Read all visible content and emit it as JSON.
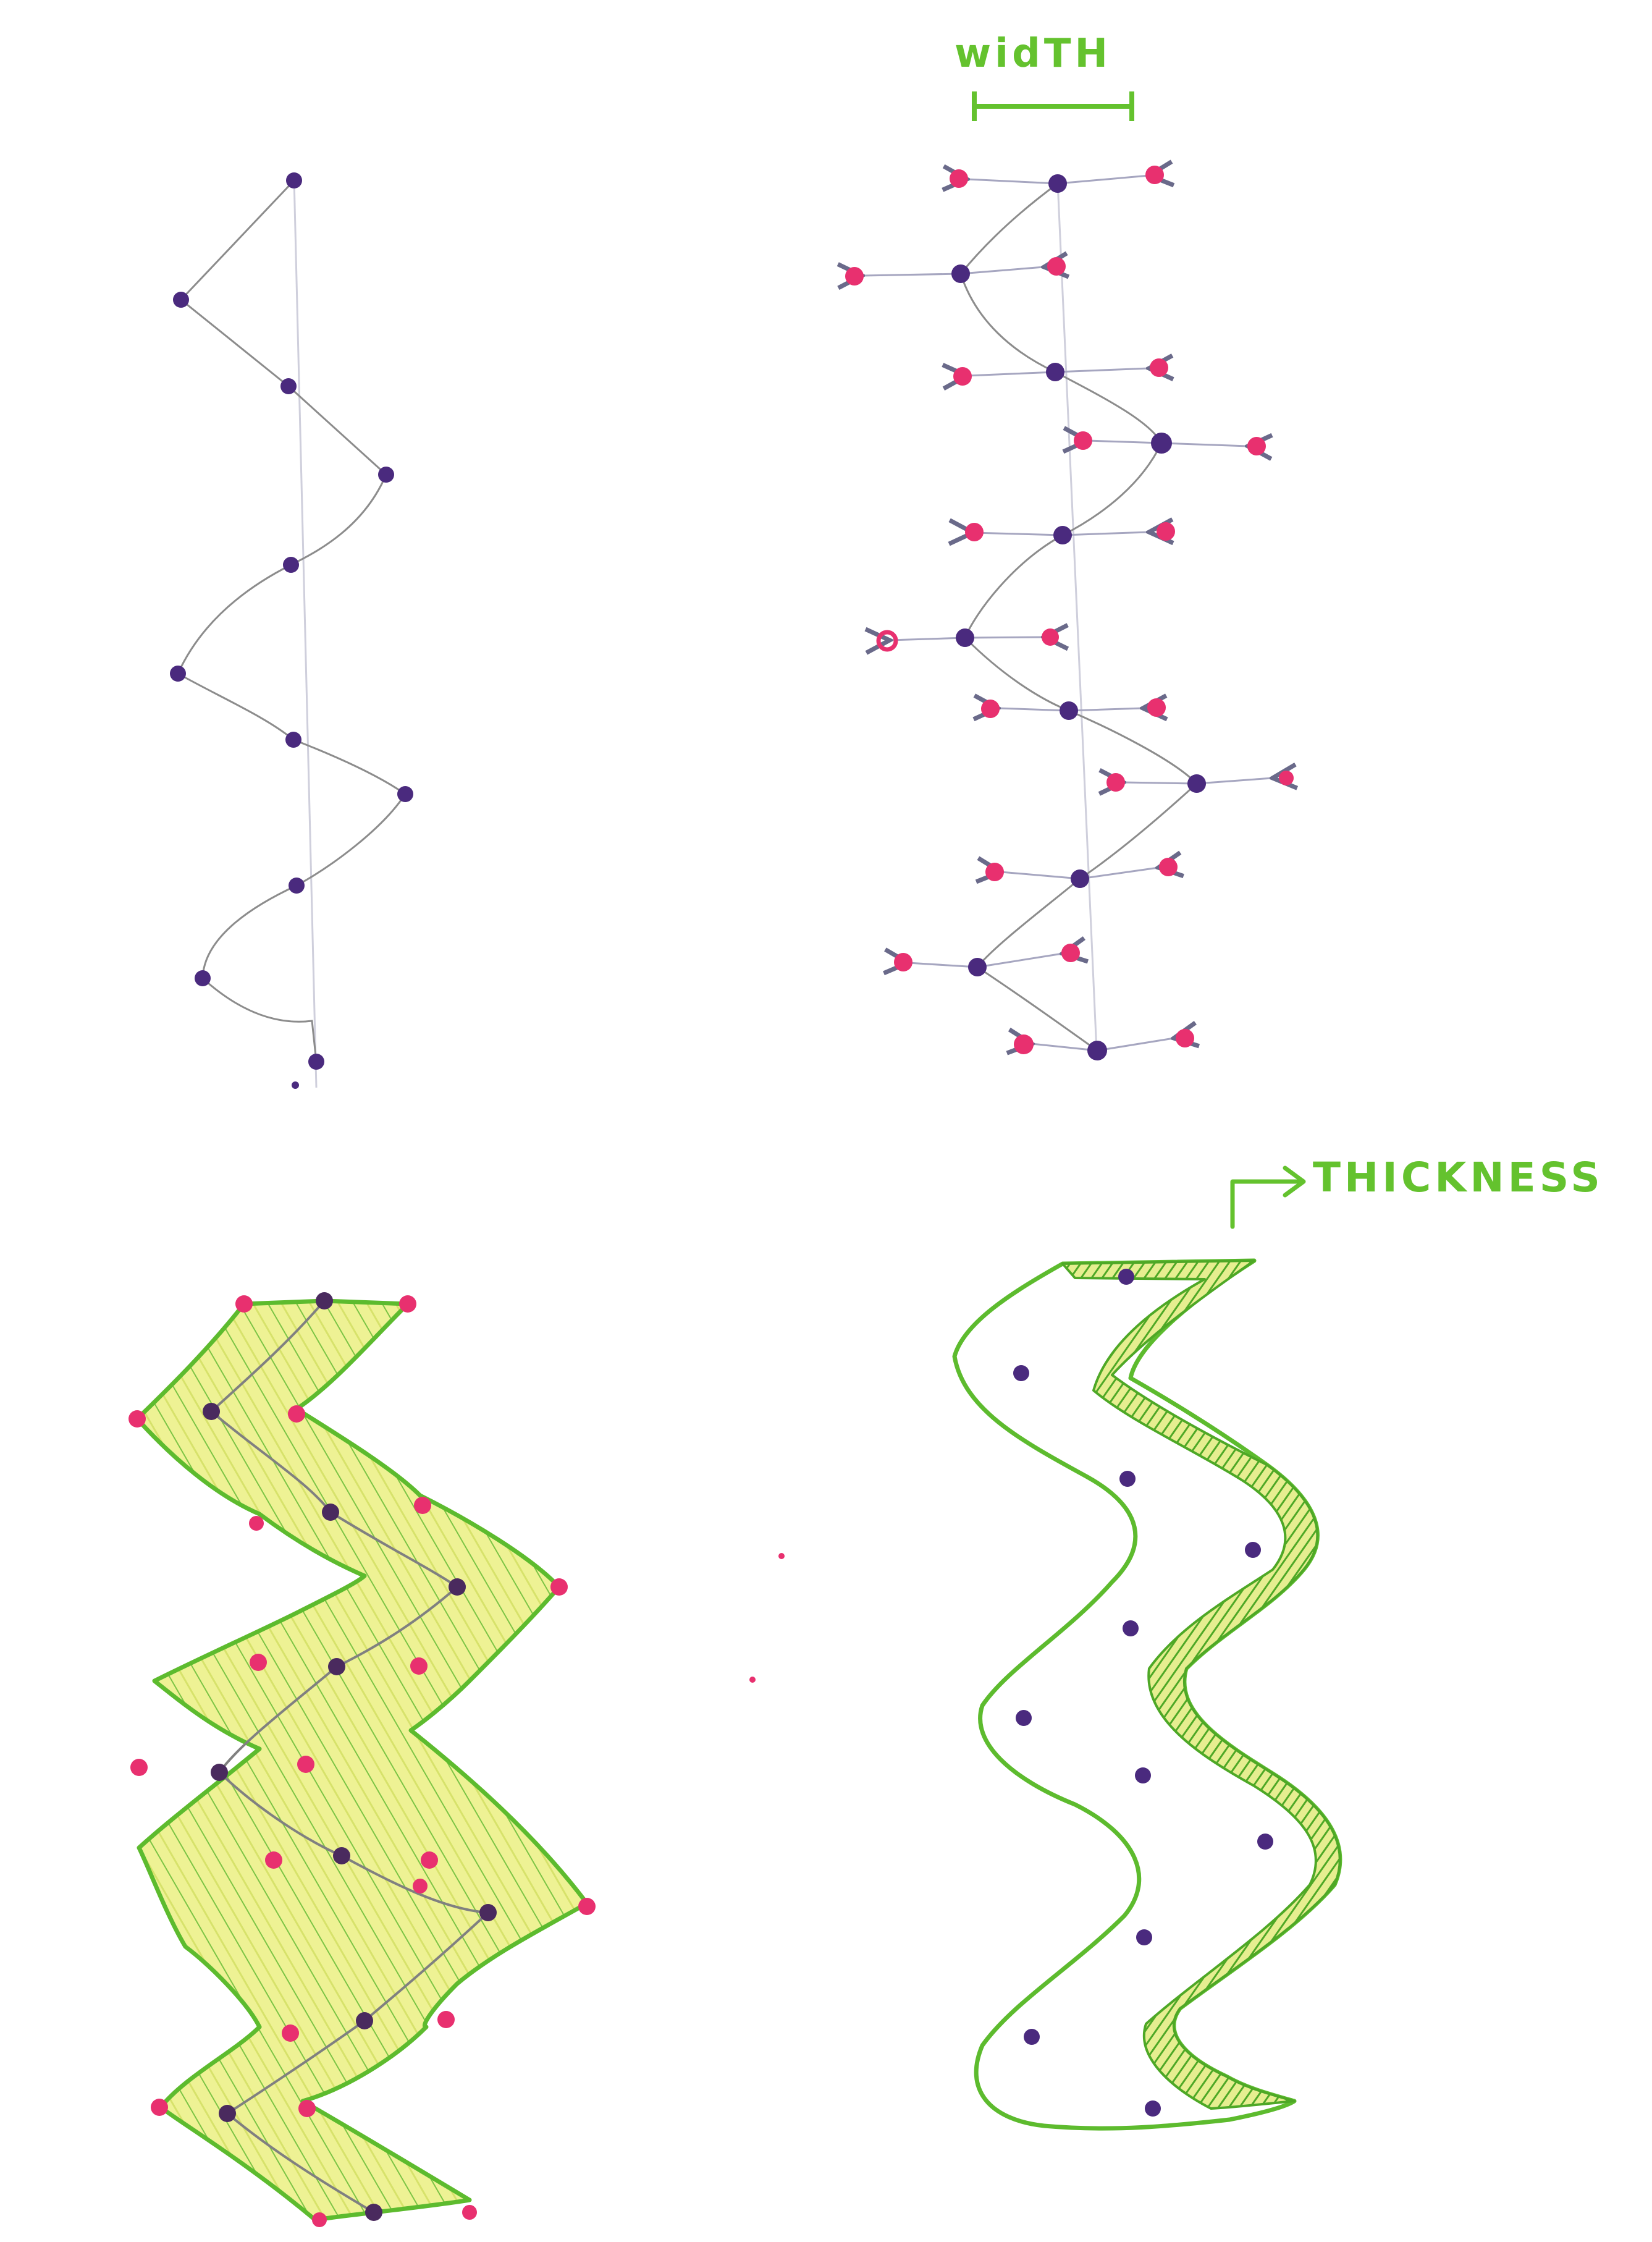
{
  "labels": {
    "width": "widTH",
    "thickness": "THICKNESS"
  },
  "colors": {
    "paper": "#ffffff",
    "guide_line": "#c9c9d6",
    "curve": "#8a8a8a",
    "center_point": "#4a2a7e",
    "edge_point": "#e8306f",
    "outline": "#5dbb2e",
    "fill": "#e9ef8c",
    "hatch": "#74c043",
    "label": "#64c22e"
  },
  "panels": [
    {
      "id": "centerline",
      "center_point_count": 12
    },
    {
      "id": "width-offsets",
      "center_point_count": 11
    },
    {
      "id": "filled-ribbon"
    },
    {
      "id": "thickness-outline"
    }
  ]
}
